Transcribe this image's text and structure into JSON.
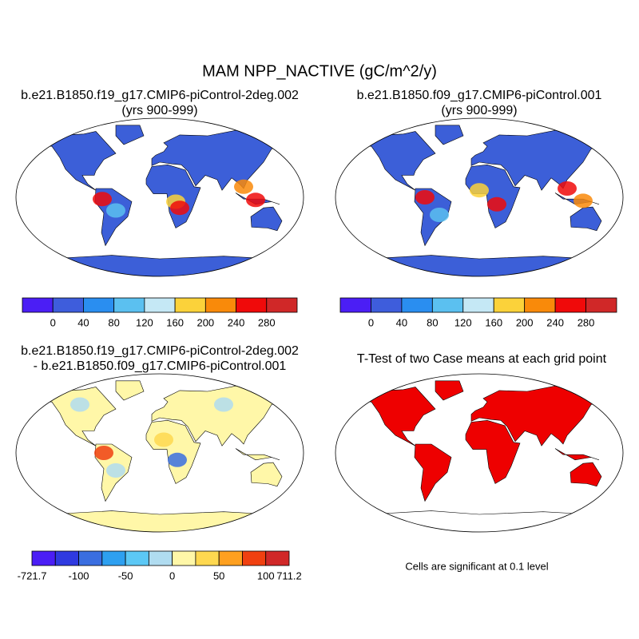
{
  "title": "MAM NPP_NACTIVE (gC/m^2/y)",
  "panels": [
    {
      "title": [
        "b.e21.B1850.f19_g17.CMIP6-piControl-2deg.002",
        "(yrs 900-999)"
      ],
      "colorbar": {
        "colors": [
          "#4b1ef5",
          "#3e5ddc",
          "#2a8ef0",
          "#5bc0f0",
          "#c5e8f5",
          "#fbd23a",
          "#f98a0a",
          "#f00a0a",
          "#d02828"
        ],
        "labels": [
          "0",
          "40",
          "80",
          "120",
          "160",
          "200",
          "240",
          "280"
        ]
      }
    },
    {
      "title": [
        "b.e21.B1850.f09_g17.CMIP6-piControl.001",
        "(yrs 900-999)"
      ],
      "colorbar": {
        "colors": [
          "#4b1ef5",
          "#3e5ddc",
          "#2a8ef0",
          "#5bc0f0",
          "#c5e8f5",
          "#fbd23a",
          "#f98a0a",
          "#f00a0a",
          "#d02828"
        ],
        "labels": [
          "0",
          "40",
          "80",
          "120",
          "160",
          "200",
          "240",
          "280"
        ]
      }
    },
    {
      "title": [
        "b.e21.B1850.f19_g17.CMIP6-piControl-2deg.002",
        "- b.e21.B1850.f09_g17.CMIP6-piControl.001"
      ],
      "colorbar": {
        "colors": [
          "#4b1ef5",
          "#2f3ae0",
          "#3a6ee0",
          "#2ea0f0",
          "#5cc8f5",
          "#b0dcf0",
          "#fff7a8",
          "#fed850",
          "#fea020",
          "#f04010",
          "#d02828"
        ],
        "labels": [
          "-721.7",
          "-100",
          "-50",
          "0",
          "50",
          "100",
          "711.2"
        ]
      }
    },
    {
      "title": [
        "T-Test of two Case means at each grid point"
      ],
      "note": "Cells are significant at 0.1 level"
    }
  ]
}
